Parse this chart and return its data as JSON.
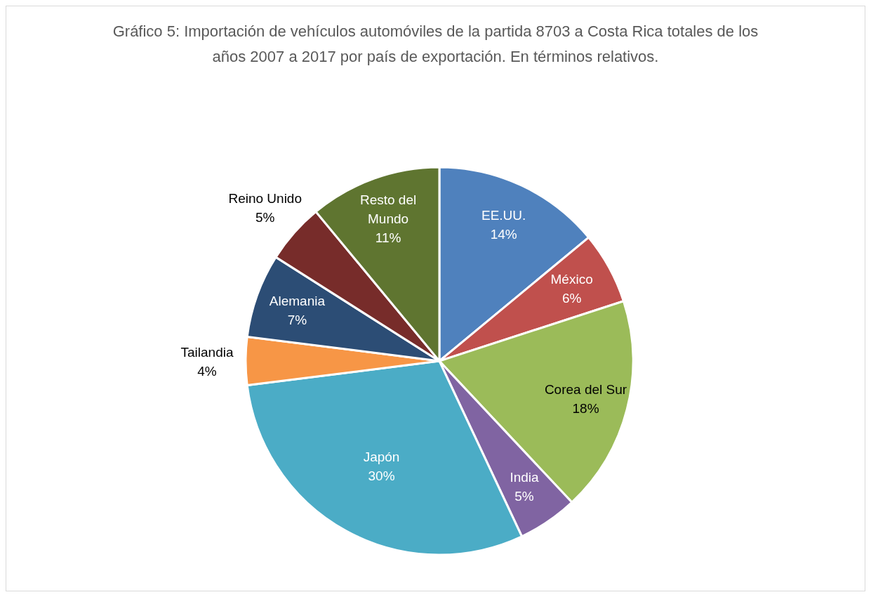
{
  "chart_data": {
    "type": "pie",
    "title": "Gráfico 5: Importación de vehículos automóviles de la partida 8703 a Costa Rica totales de los años 2007 a 2017 por país de exportación. En términos relativos.",
    "categories": [
      "EE.UU.",
      "México",
      "Corea del Sur",
      "India",
      "Japón",
      "Tailandia",
      "Alemania",
      "Reino Unido",
      "Resto del Mundo"
    ],
    "values": [
      14,
      6,
      18,
      5,
      30,
      4,
      7,
      5,
      11
    ],
    "colors": [
      "#4f81bd",
      "#c0504d",
      "#9bbb59",
      "#8064a2",
      "#4bacc6",
      "#f79646",
      "#2c4d75",
      "#772c2a",
      "#5f7530"
    ],
    "value_labels": [
      "14%",
      "6%",
      "18%",
      "5%",
      "30%",
      "4%",
      "7%",
      "5%",
      "11%"
    ]
  }
}
